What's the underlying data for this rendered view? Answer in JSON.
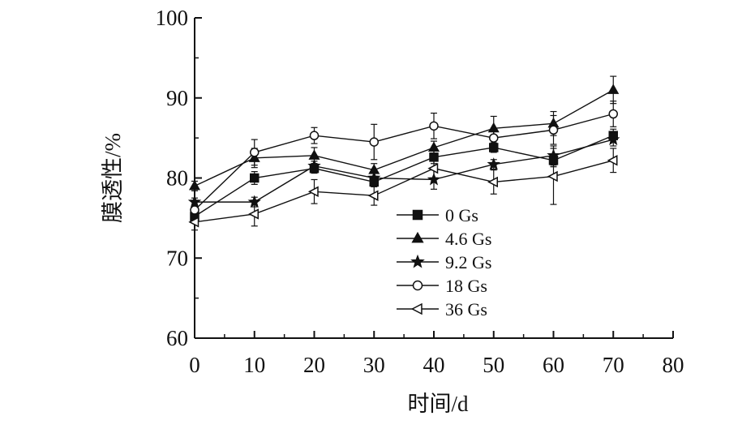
{
  "chart_data": {
    "type": "line",
    "title": "",
    "xlabel": "时间/d",
    "ylabel": "膜透性/%",
    "xlim": [
      0,
      80
    ],
    "ylim": [
      60,
      100
    ],
    "x_ticks": [
      0,
      10,
      20,
      30,
      40,
      50,
      60,
      70,
      80
    ],
    "y_ticks": [
      60,
      70,
      80,
      90,
      100
    ],
    "x": [
      0,
      10,
      20,
      30,
      40,
      50,
      60,
      70
    ],
    "grid": false,
    "legend_position": "center",
    "series": [
      {
        "name": "0 Gs",
        "marker": "filled-square",
        "values": [
          75.2,
          80.0,
          81.2,
          79.5,
          82.6,
          83.8,
          82.2,
          85.3
        ],
        "errors": [
          0.6,
          0.8,
          0.6,
          0.6,
          0.8,
          0.6,
          0.8,
          0.8
        ]
      },
      {
        "name": "4.6 Gs",
        "marker": "filled-triangle",
        "values": [
          79.0,
          82.5,
          82.8,
          81.0,
          83.8,
          86.2,
          86.8,
          91.0
        ],
        "errors": [
          0.6,
          1.2,
          1.0,
          0.8,
          0.8,
          1.5,
          1.5,
          1.7
        ]
      },
      {
        "name": "9.2 Gs",
        "marker": "filled-star",
        "values": [
          77.0,
          77.0,
          81.5,
          80.0,
          79.8,
          81.7,
          82.8,
          84.8
        ],
        "errors": [
          0.5,
          0.6,
          0.6,
          0.8,
          1.2,
          0.6,
          1.2,
          0.8
        ]
      },
      {
        "name": "18 Gs",
        "marker": "open-circle",
        "values": [
          76.0,
          83.2,
          85.3,
          84.5,
          86.5,
          85.0,
          86.0,
          88.0
        ],
        "errors": [
          1.0,
          1.6,
          1.0,
          2.2,
          1.6,
          1.2,
          1.8,
          1.6
        ]
      },
      {
        "name": "36 Gs",
        "marker": "open-triangle-left",
        "values": [
          74.5,
          75.5,
          78.3,
          77.8,
          81.2,
          79.5,
          80.2,
          82.2
        ],
        "errors": [
          1.0,
          1.5,
          1.5,
          1.2,
          1.2,
          1.5,
          3.5,
          1.5
        ]
      }
    ]
  }
}
